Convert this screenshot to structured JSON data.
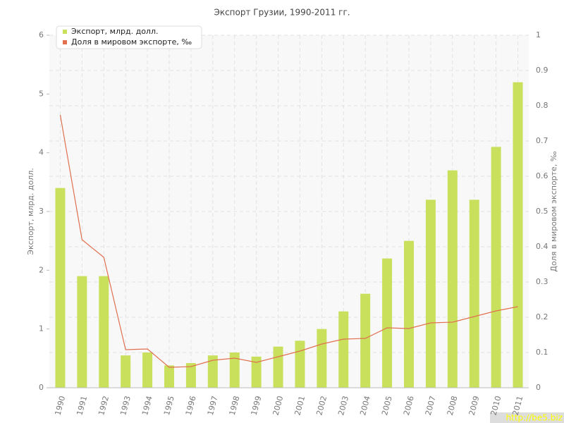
{
  "chart_data": {
    "type": "bar",
    "title": "Экспорт Грузии, 1990-2011 гг.",
    "y_label": "Экспорт, млрд. долл.",
    "y2_label": "Доля в мировом экспорте, ‰",
    "categories": [
      "1990",
      "1991",
      "1992",
      "1993",
      "1994",
      "1995",
      "1996",
      "1997",
      "1998",
      "1999",
      "2000",
      "2001",
      "2002",
      "2003",
      "2004",
      "2005",
      "2006",
      "2007",
      "2008",
      "2009",
      "2010",
      "2011"
    ],
    "series": [
      {
        "name": "Экспорт, млрд. долл.",
        "type": "bar",
        "color": "#c8e05c",
        "axis": "y",
        "values": [
          3.4,
          1.9,
          1.9,
          0.55,
          0.6,
          0.38,
          0.42,
          0.55,
          0.6,
          0.53,
          0.7,
          0.8,
          1.0,
          1.3,
          1.6,
          2.2,
          2.5,
          3.2,
          3.7,
          3.2,
          4.1,
          5.2
        ]
      },
      {
        "name": "Доля в мировом экспорте, ‰",
        "type": "line",
        "color": "#e07050",
        "axis": "y2",
        "values": [
          0.774,
          0.42,
          0.37,
          0.108,
          0.11,
          0.058,
          0.06,
          0.078,
          0.084,
          0.072,
          0.088,
          0.104,
          0.124,
          0.138,
          0.14,
          0.17,
          0.168,
          0.184,
          0.186,
          0.202,
          0.218,
          0.23
        ]
      }
    ],
    "ylim": [
      0,
      6
    ],
    "yticks": [
      0,
      1,
      2,
      3,
      4,
      5,
      6
    ],
    "y2lim": [
      0,
      1
    ],
    "y2ticks": [
      0,
      0.1,
      0.2,
      0.3,
      0.4,
      0.5,
      0.6,
      0.7,
      0.8,
      0.9,
      1
    ],
    "grid": true,
    "legend": "upper left",
    "annotations": [
      "http://be5.biz"
    ]
  }
}
